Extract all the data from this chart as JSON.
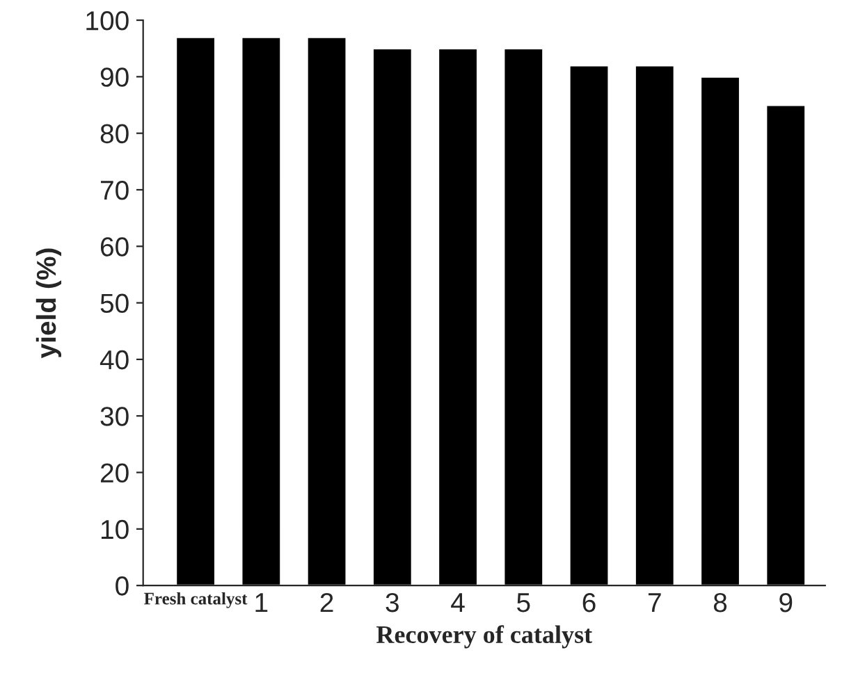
{
  "chart_data": {
    "type": "bar",
    "xlabel": "Recovery of catalyst",
    "ylabel": "yield (%)",
    "categories": [
      "Fresh catalyst",
      "1",
      "2",
      "3",
      "4",
      "5",
      "6",
      "7",
      "8",
      "9"
    ],
    "values": [
      97,
      97,
      97,
      95,
      95,
      95,
      92,
      92,
      90,
      85
    ],
    "color": "#000000",
    "ylim": [
      0,
      100
    ],
    "yticks": [
      0,
      10,
      20,
      30,
      40,
      50,
      60,
      70,
      80,
      90,
      100
    ],
    "grid": false
  }
}
